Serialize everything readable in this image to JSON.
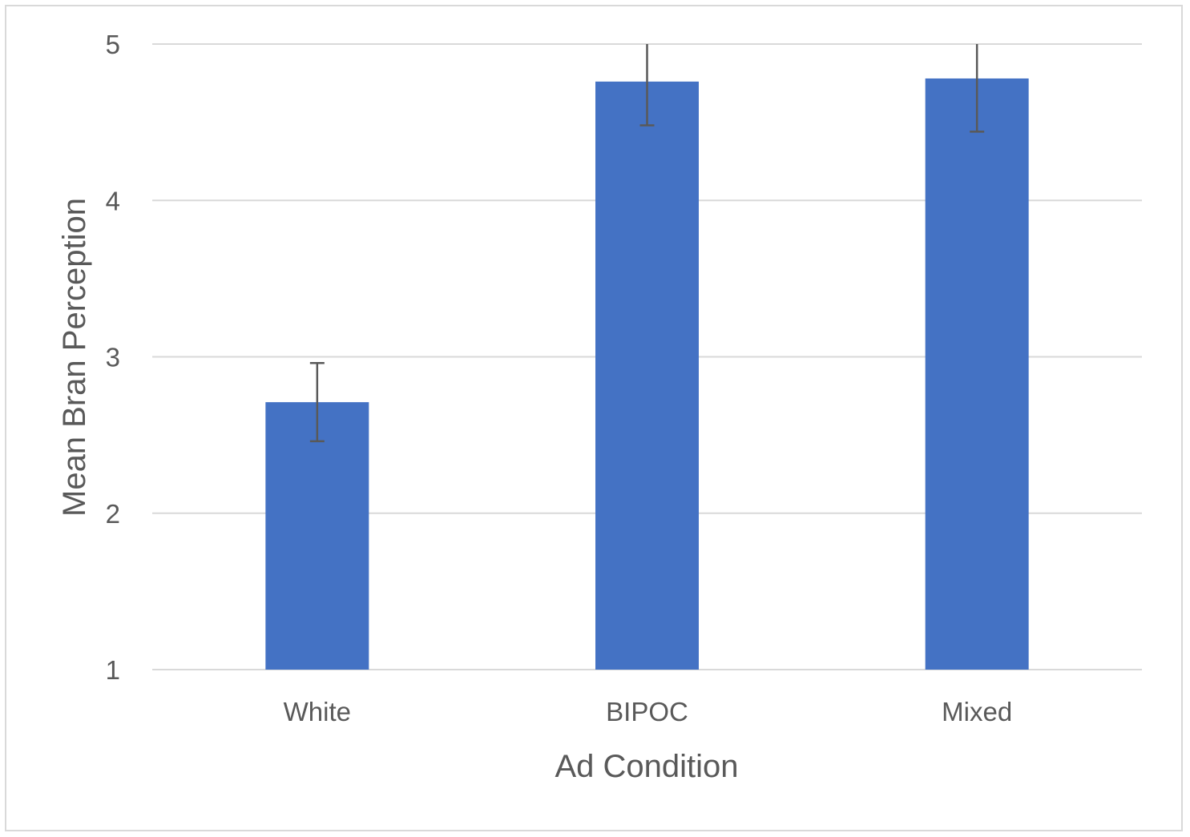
{
  "chart_data": {
    "type": "bar",
    "categories": [
      "White",
      "BIPOC",
      "Mixed"
    ],
    "values": [
      2.71,
      4.76,
      4.78
    ],
    "error_upper": [
      2.96,
      5.0,
      5.0
    ],
    "error_lower": [
      2.46,
      4.48,
      4.44
    ],
    "title": "",
    "xlabel": "Ad Condition",
    "ylabel": "Mean Bran Perception",
    "ylim": [
      1,
      5
    ],
    "yticks": [
      1,
      2,
      3,
      4,
      5
    ],
    "grid": true,
    "legend": "none",
    "colors": {
      "bar": "#4472c4",
      "grid": "#d9d9d9",
      "error_bar": "#595959",
      "text": "#595959"
    }
  }
}
